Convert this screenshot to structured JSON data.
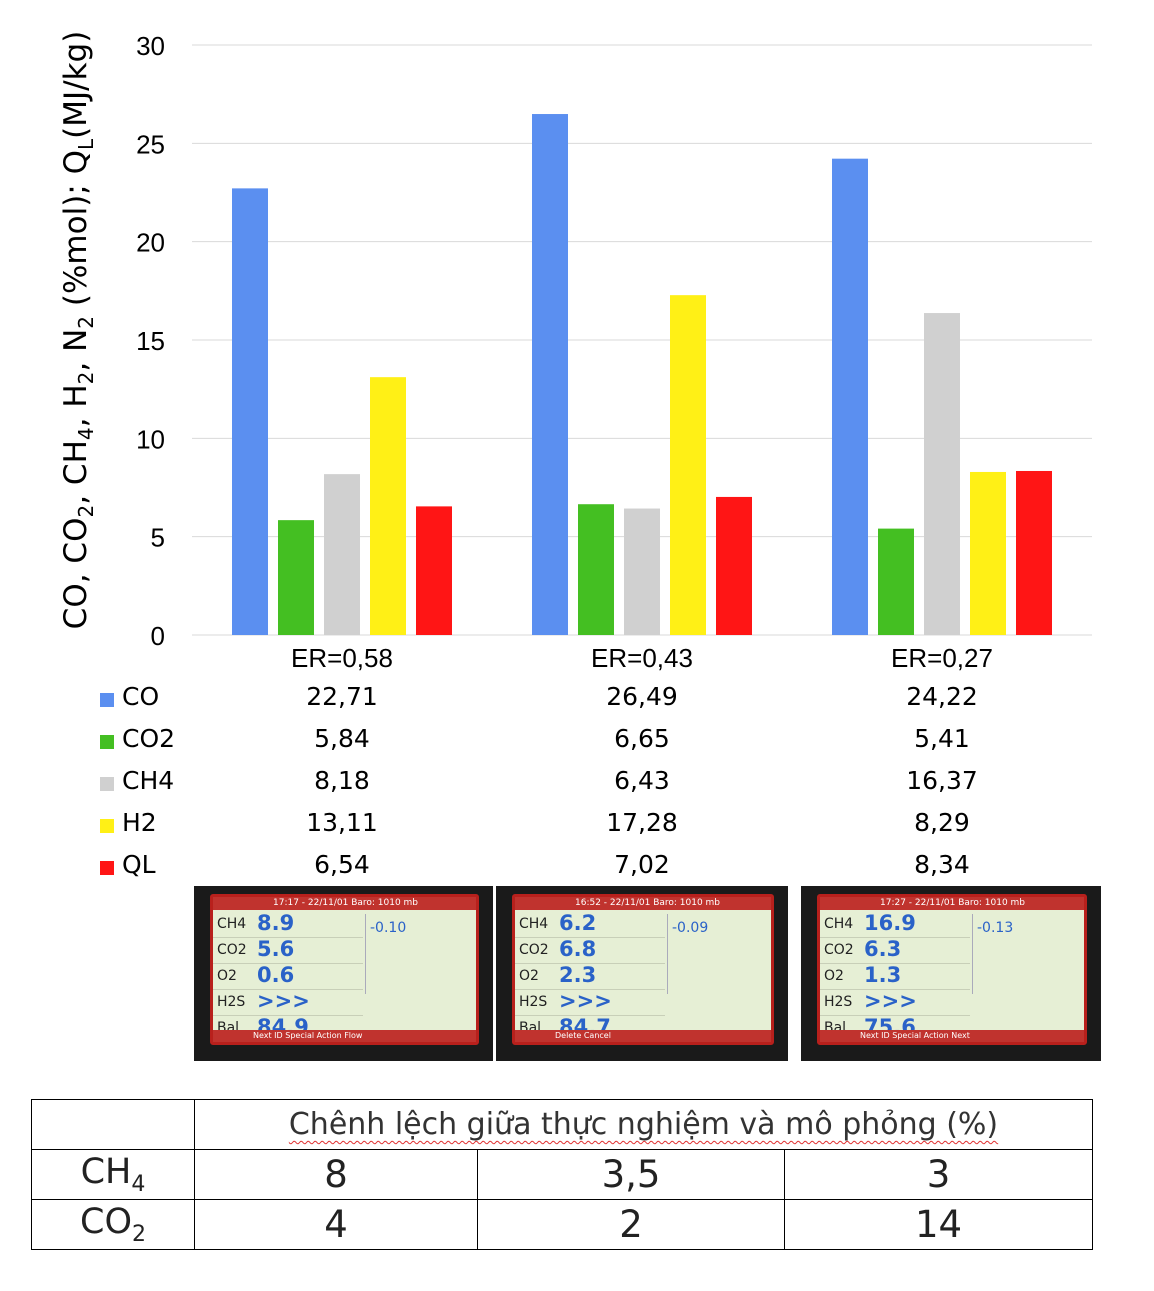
{
  "chart_data": {
    "type": "bar",
    "categories": [
      "ER=0,58",
      "ER=0,43",
      "ER=0,27"
    ],
    "series": [
      {
        "name": "CO",
        "color": "#5b8ff0",
        "values": [
          22.71,
          26.49,
          24.22
        ],
        "labels": [
          "22,71",
          "26,49",
          "24,22"
        ]
      },
      {
        "name": "CO2",
        "color": "#44bf22",
        "values": [
          5.84,
          6.65,
          5.41
        ],
        "labels": [
          "5,84",
          "6,65",
          "5,41"
        ]
      },
      {
        "name": "CH4",
        "color": "#d0d0d0",
        "values": [
          8.18,
          6.43,
          16.37
        ],
        "labels": [
          "8,18",
          "6,43",
          "16,37"
        ]
      },
      {
        "name": "H2",
        "color": "#fff016",
        "values": [
          13.11,
          17.28,
          8.29
        ],
        "labels": [
          "13,11",
          "17,28",
          "8,29"
        ]
      },
      {
        "name": "QL",
        "color": "#ff1515",
        "values": [
          6.54,
          7.02,
          8.34
        ],
        "labels": [
          "6,54",
          "7,02",
          "8,34"
        ]
      }
    ],
    "yticks": [
      "0",
      "5",
      "10",
      "15",
      "20",
      "25",
      "30"
    ],
    "ylim": [
      0,
      30
    ],
    "ylabel": {
      "prefix": "CO, CO",
      "co2_sub": "2",
      "ch": ", CH",
      "ch4_sub": "4",
      "h": ", H",
      "h2_sub": "2",
      "n": ", N",
      "n2_sub": "2",
      "mid": " (%mol); Q",
      "ql_sub": "L",
      "suffix": "(MJ/kg)"
    },
    "grid": true,
    "legend": "data-table-below"
  },
  "photos": [
    {
      "time": "17:17 - 22/11/01",
      "baro": "Baro: 1010 mb",
      "system": "-0.10",
      "readings": [
        {
          "gas": "CH4",
          "value": "8.9"
        },
        {
          "gas": "CO2",
          "value": "5.6"
        },
        {
          "gas": "O2",
          "value": "0.6"
        },
        {
          "gas": "H2S",
          "value": ">>>"
        },
        {
          "gas": "Bal",
          "value": "84.9"
        }
      ],
      "footer": "Next ID     Special Action     Flow"
    },
    {
      "time": "16:52 - 22/11/01",
      "baro": "Baro: 1010 mb",
      "system": "-0.09",
      "readings": [
        {
          "gas": "CH4",
          "value": "6.2"
        },
        {
          "gas": "CO2",
          "value": "6.8"
        },
        {
          "gas": "O2",
          "value": "2.3"
        },
        {
          "gas": "H2S",
          "value": ">>>"
        },
        {
          "gas": "Bal",
          "value": "84.7"
        }
      ],
      "footer": "Delete          Cancel"
    },
    {
      "time": "17:27 - 22/11/01",
      "baro": "Baro: 1010 mb",
      "system": "-0.13",
      "readings": [
        {
          "gas": "CH4",
          "value": "16.9"
        },
        {
          "gas": "CO2",
          "value": "6.3"
        },
        {
          "gas": "O2",
          "value": "1.3"
        },
        {
          "gas": "H2S",
          "value": ">>>"
        },
        {
          "gas": "Bal",
          "value": "75.6"
        }
      ],
      "footer": "Next ID     Special Action     Next"
    }
  ],
  "diff_table": {
    "title": "Chênh lệch giữa thực nghiệm và mô phỏng (%)",
    "rows": [
      {
        "label": "CH",
        "sub": "4",
        "values": [
          "8",
          "3,5",
          "3"
        ]
      },
      {
        "label": "CO",
        "sub": "2",
        "values": [
          "4",
          "2",
          "14"
        ]
      }
    ]
  }
}
